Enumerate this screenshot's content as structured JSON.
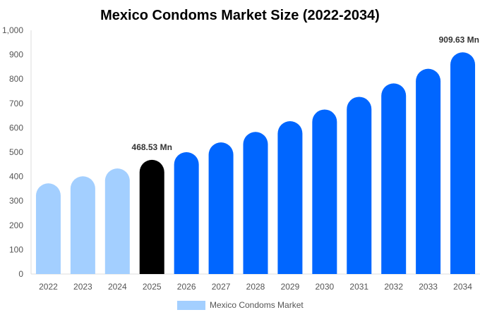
{
  "chart_data": {
    "type": "bar",
    "title": "Mexico Condoms Market Size (2022-2034)",
    "categories": [
      "2022",
      "2023",
      "2024",
      "2025",
      "2026",
      "2027",
      "2028",
      "2029",
      "2030",
      "2031",
      "2032",
      "2033",
      "2034"
    ],
    "series": [
      {
        "name": "Mexico Condoms Market",
        "values": [
          372,
          401,
          433,
          468.53,
          500,
          540,
          583,
          627,
          675,
          727,
          782,
          842,
          909.63
        ]
      }
    ],
    "ylim": [
      0,
      1000
    ],
    "yticks": [
      "0",
      "100",
      "200",
      "300",
      "400",
      "500",
      "600",
      "700",
      "800",
      "900",
      "1,000"
    ],
    "data_labels": [
      {
        "index": 3,
        "text": "468.53 Mn"
      },
      {
        "index": 12,
        "text": "909.63 Mn"
      }
    ],
    "grid": false,
    "legend": "bottom-center",
    "colors": {
      "historical": "#a3cfff",
      "current": "#000000",
      "forecast": "#0066ff",
      "legend_swatch": "#a3cfff"
    },
    "color_groups": [
      "historical",
      "historical",
      "historical",
      "current",
      "forecast",
      "forecast",
      "forecast",
      "forecast",
      "forecast",
      "forecast",
      "forecast",
      "forecast",
      "forecast"
    ]
  }
}
